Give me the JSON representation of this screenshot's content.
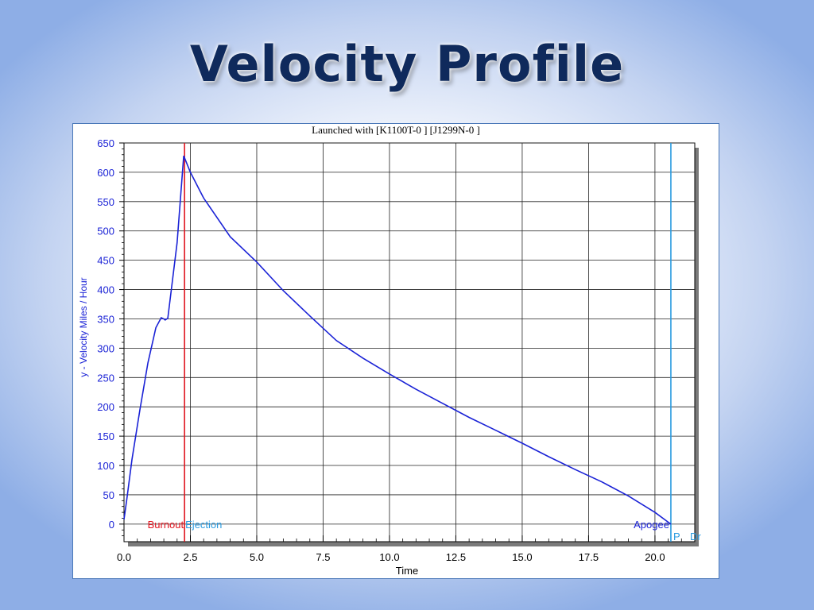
{
  "slide": {
    "title": "Velocity Profile"
  },
  "chart_data": {
    "type": "line",
    "title": "Launched with [K1100T-0   ] [J1299N-0   ]",
    "xlabel": "Time",
    "ylabel": "y - Velocity Miles / Hour",
    "xlim": [
      0,
      21.5
    ],
    "ylim": [
      -30,
      650
    ],
    "x_ticks": [
      "0.0",
      "2.5",
      "5.0",
      "7.5",
      "10.0",
      "12.5",
      "15.0",
      "17.5",
      "20.0"
    ],
    "y_ticks": [
      "650",
      "600",
      "550",
      "500",
      "450",
      "400",
      "350",
      "300",
      "250",
      "200",
      "150",
      "100",
      "50",
      "0"
    ],
    "series": [
      {
        "name": "y - Velocity",
        "color": "#1a22d6",
        "x": [
          0.0,
          0.1,
          0.3,
          0.6,
          0.9,
          1.2,
          1.4,
          1.5,
          1.55,
          1.65,
          2.0,
          2.25,
          2.5,
          3.0,
          4.0,
          5.0,
          6.0,
          7.0,
          8.0,
          9.0,
          10.0,
          11.0,
          12.0,
          13.0,
          14.0,
          15.0,
          16.0,
          17.0,
          18.0,
          19.0,
          20.0,
          20.6
        ],
        "y": [
          8,
          40,
          110,
          195,
          275,
          335,
          352,
          350,
          348,
          351,
          480,
          628,
          600,
          556,
          490,
          447,
          398,
          355,
          313,
          283,
          256,
          230,
          206,
          182,
          160,
          138,
          115,
          93,
          72,
          48,
          20,
          0
        ]
      }
    ],
    "markers": [
      {
        "label": "Burnout",
        "x": 2.28,
        "color": "#e0141e"
      },
      {
        "label": "Ejection",
        "x": 2.28,
        "color": "#2a9be0"
      },
      {
        "label": "Apogee",
        "x": 20.6,
        "color": "#1a22d6"
      },
      {
        "label": "P",
        "x": 20.6,
        "color": "#2a9be0"
      },
      {
        "label": "Dr",
        "x": 20.6,
        "color": "#2a9be0"
      }
    ],
    "grid": true
  }
}
